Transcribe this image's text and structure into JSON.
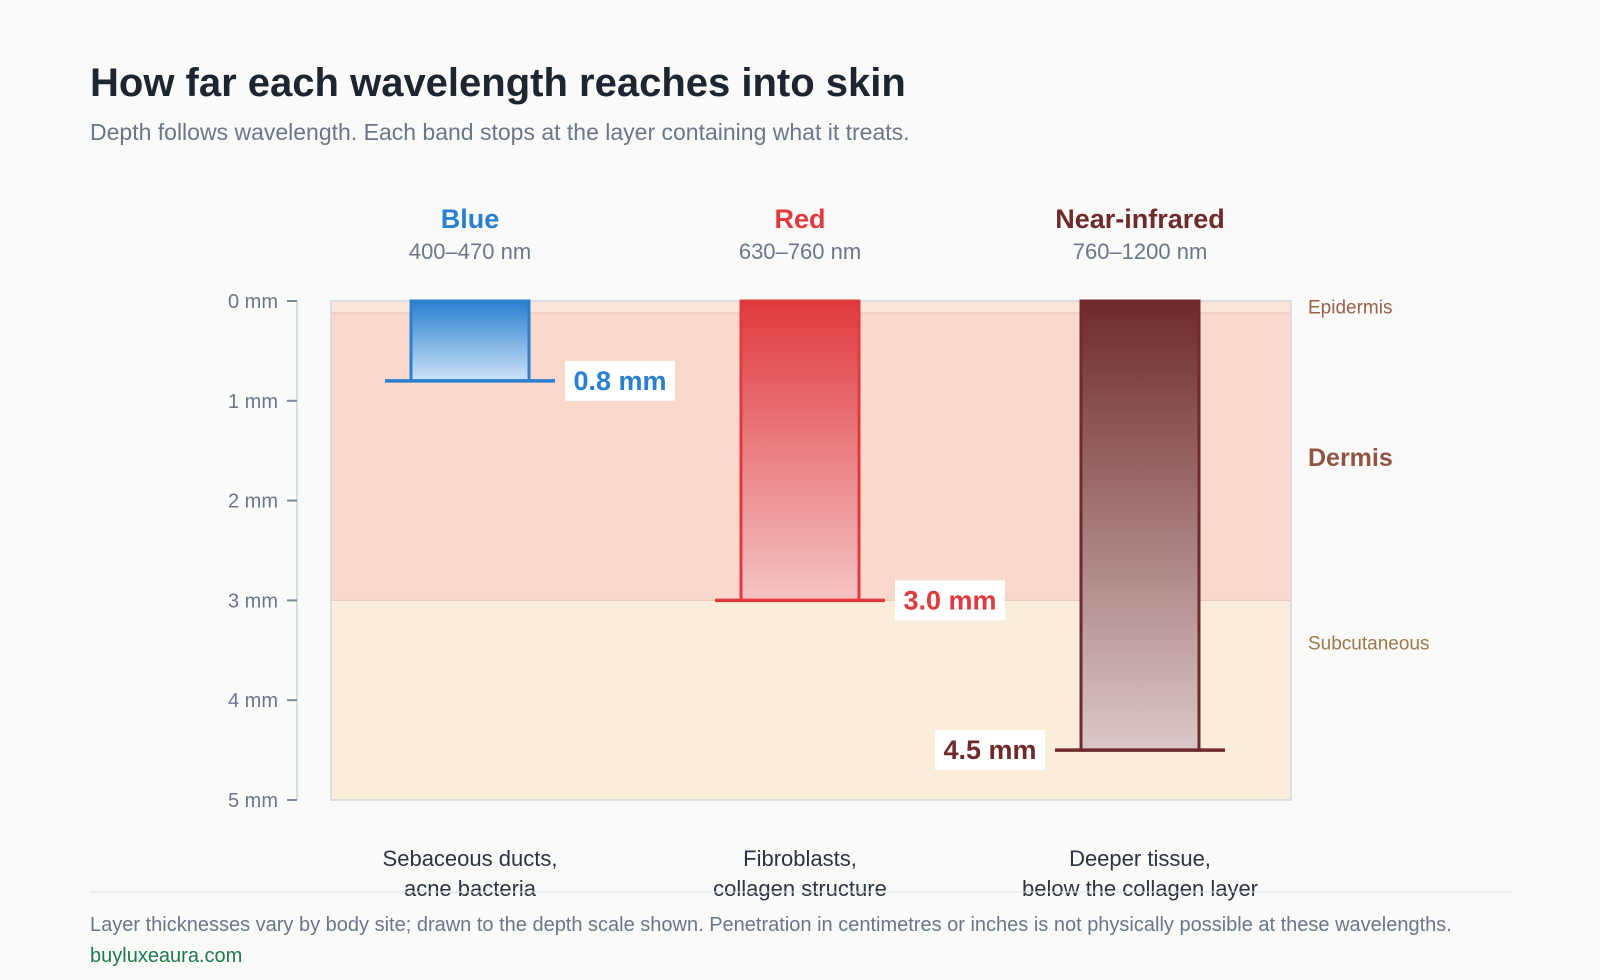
{
  "chart_data": {
    "type": "bar",
    "title": "How far each wavelength reaches into skin",
    "subtitle": "Depth follows wavelength. Each band stops at the layer containing what it treats.",
    "ylabel": "",
    "xlabel": "",
    "ylim": [
      0,
      5
    ],
    "y_ticks": [
      {
        "value": 0,
        "label": "0 mm"
      },
      {
        "value": 1,
        "label": "1 mm"
      },
      {
        "value": 2,
        "label": "2 mm"
      },
      {
        "value": 3,
        "label": "3 mm"
      },
      {
        "value": 4,
        "label": "4 mm"
      },
      {
        "value": 5,
        "label": "5 mm"
      }
    ],
    "grid": false,
    "layers": [
      {
        "name": "Epidermis",
        "from": 0,
        "to": 0.12,
        "color": "#fbe5dc",
        "label_color": "#9a5e4c"
      },
      {
        "name": "Dermis",
        "from": 0.12,
        "to": 3.0,
        "color": "#fbd8cc",
        "label_color": "#8f5544"
      },
      {
        "name": "Subcutaneous",
        "from": 3.0,
        "to": 5.0,
        "color": "#faedd9",
        "label_color": "#9a7a4c"
      }
    ],
    "series": [
      {
        "name": "Blue",
        "range": "400–470 nm",
        "value": 0.8,
        "value_label": "0.8 mm",
        "color": "#2a7fd0",
        "light": "#cde3f5",
        "target_line1": "Sebaceous ducts,",
        "target_line2": "acne bacteria"
      },
      {
        "name": "Red",
        "range": "630–760 nm",
        "value": 3.0,
        "value_label": "3.0 mm",
        "color": "#e03a3e",
        "light": "#f4c4c6",
        "target_line1": "Fibroblasts,",
        "target_line2": "collagen structure"
      },
      {
        "name": "Near-infrared",
        "range": "760–1200 nm",
        "value": 4.5,
        "value_label": "4.5 mm",
        "color": "#6e2a2c",
        "light": "#dbc8c8",
        "target_line1": "Deeper tissue,",
        "target_line2": "below the collagen layer"
      }
    ]
  },
  "footer": {
    "note": "Layer thicknesses vary by body site; drawn to the depth scale shown. Penetration in centimetres or inches is not physically possible at these wavelengths.",
    "source": "buyluxeaura.com"
  },
  "colors": {
    "title": "#1c2530",
    "muted": "#6b7789",
    "axis": "#c8d1de",
    "source": "#1d7a4c"
  }
}
